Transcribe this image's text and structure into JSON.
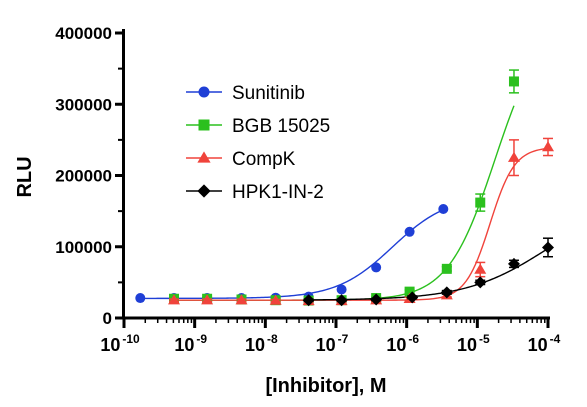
{
  "chart_data": {
    "type": "scatter",
    "xlabel": "[Inhibitor], M",
    "ylabel": "RLU",
    "x_scale": "log10",
    "xlim": [
      1e-10,
      0.0001
    ],
    "ylim": [
      0,
      400000
    ],
    "x_ticks": [
      {
        "value": 1e-10,
        "base": "10",
        "exp": "-10"
      },
      {
        "value": 1e-09,
        "base": "10",
        "exp": "-9"
      },
      {
        "value": 1e-08,
        "base": "10",
        "exp": "-8"
      },
      {
        "value": 1e-07,
        "base": "10",
        "exp": "-7"
      },
      {
        "value": 1e-06,
        "base": "10",
        "exp": "-6"
      },
      {
        "value": 1e-05,
        "base": "10",
        "exp": "-5"
      },
      {
        "value": 0.0001,
        "base": "10",
        "exp": "-4"
      }
    ],
    "y_ticks": [
      {
        "value": 0,
        "label": "0"
      },
      {
        "value": 100000,
        "label": "100000"
      },
      {
        "value": 200000,
        "label": "200000"
      },
      {
        "value": 300000,
        "label": "300000"
      },
      {
        "value": 400000,
        "label": "400000"
      }
    ],
    "legend_position": "upper-left",
    "series": [
      {
        "name": "Sunitinib",
        "color": "#1f3fd6",
        "marker": "circle",
        "points": [
          {
            "x": 1.7e-10,
            "y": 28000
          },
          {
            "x": 5.1e-10,
            "y": 28000
          },
          {
            "x": 1.5e-09,
            "y": 28000
          },
          {
            "x": 4.6e-09,
            "y": 28000
          },
          {
            "x": 1.4e-08,
            "y": 28500
          },
          {
            "x": 4.1e-08,
            "y": 30000
          },
          {
            "x": 1.2e-07,
            "y": 40000
          },
          {
            "x": 3.7e-07,
            "y": 71000
          },
          {
            "x": 1.1e-06,
            "y": 121000
          },
          {
            "x": 3.3e-06,
            "y": 153000
          }
        ],
        "curve": {
          "bottom": 27500,
          "top": 172000,
          "log_ec50": -6.2,
          "hill": 1.1,
          "x_from": 1.7e-10,
          "x_to": 3.3e-06
        }
      },
      {
        "name": "BGB 15025",
        "color": "#2bc01e",
        "marker": "square",
        "points": [
          {
            "x": 5.1e-10,
            "y": 27000,
            "err": 2000
          },
          {
            "x": 1.5e-09,
            "y": 27000,
            "err": 2000
          },
          {
            "x": 4.6e-09,
            "y": 26000,
            "err": 2000
          },
          {
            "x": 1.4e-08,
            "y": 25000,
            "err": 2000
          },
          {
            "x": 4.1e-08,
            "y": 24500,
            "err": 2000
          },
          {
            "x": 1.2e-07,
            "y": 25000,
            "err": 2000
          },
          {
            "x": 3.7e-07,
            "y": 28000,
            "err": 2000
          },
          {
            "x": 1.1e-06,
            "y": 37000,
            "err": 2500
          },
          {
            "x": 3.7e-06,
            "y": 69000,
            "err": 3000
          },
          {
            "x": 1.1e-05,
            "y": 162000,
            "err": 12000
          },
          {
            "x": 3.3e-05,
            "y": 332000,
            "err": 16000
          }
        ],
        "curve": {
          "bottom": 25000,
          "top": 420000,
          "log_ec50": -4.75,
          "hill": 1.3,
          "x_from": 5.1e-10,
          "x_to": 3.3e-05
        }
      },
      {
        "name": "CompK",
        "color": "#f0433b",
        "marker": "triangle",
        "points": [
          {
            "x": 5.1e-10,
            "y": 25000,
            "err": 1500
          },
          {
            "x": 1.5e-09,
            "y": 25000,
            "err": 1500
          },
          {
            "x": 4.6e-09,
            "y": 25000,
            "err": 1500
          },
          {
            "x": 1.4e-08,
            "y": 24500,
            "err": 1500
          },
          {
            "x": 4.1e-08,
            "y": 24000,
            "err": 1500
          },
          {
            "x": 1.2e-07,
            "y": 24000,
            "err": 1500
          },
          {
            "x": 3.7e-07,
            "y": 25000,
            "err": 1500
          },
          {
            "x": 1.1e-06,
            "y": 27000,
            "err": 2000
          },
          {
            "x": 3.7e-06,
            "y": 32000,
            "err": 2500
          },
          {
            "x": 1.1e-05,
            "y": 68000,
            "err": 10000
          },
          {
            "x": 3.3e-05,
            "y": 225000,
            "err": 25000
          },
          {
            "x": 0.0001,
            "y": 240000,
            "err": 12000
          }
        ],
        "curve": {
          "bottom": 25000,
          "top": 240000,
          "log_ec50": -4.82,
          "hill": 2.5,
          "x_from": 5.1e-10,
          "x_to": 0.0001
        }
      },
      {
        "name": "HPK1-IN-2",
        "color": "#000000",
        "marker": "diamond",
        "points": [
          {
            "x": 4.1e-08,
            "y": 25000,
            "err": 1500
          },
          {
            "x": 1.2e-07,
            "y": 25000,
            "err": 1500
          },
          {
            "x": 3.7e-07,
            "y": 26000,
            "err": 1500
          },
          {
            "x": 1.2e-06,
            "y": 29000,
            "err": 2000
          },
          {
            "x": 3.7e-06,
            "y": 36000,
            "err": 2500
          },
          {
            "x": 1.1e-05,
            "y": 50000,
            "err": 3000
          },
          {
            "x": 3.3e-05,
            "y": 76000,
            "err": 5000
          },
          {
            "x": 0.0001,
            "y": 99000,
            "err": 13000
          }
        ],
        "curve": {
          "bottom": 25000,
          "top": 170000,
          "log_ec50": -4.0,
          "hill": 0.75,
          "x_from": 4.1e-08,
          "x_to": 0.0001
        }
      }
    ]
  }
}
